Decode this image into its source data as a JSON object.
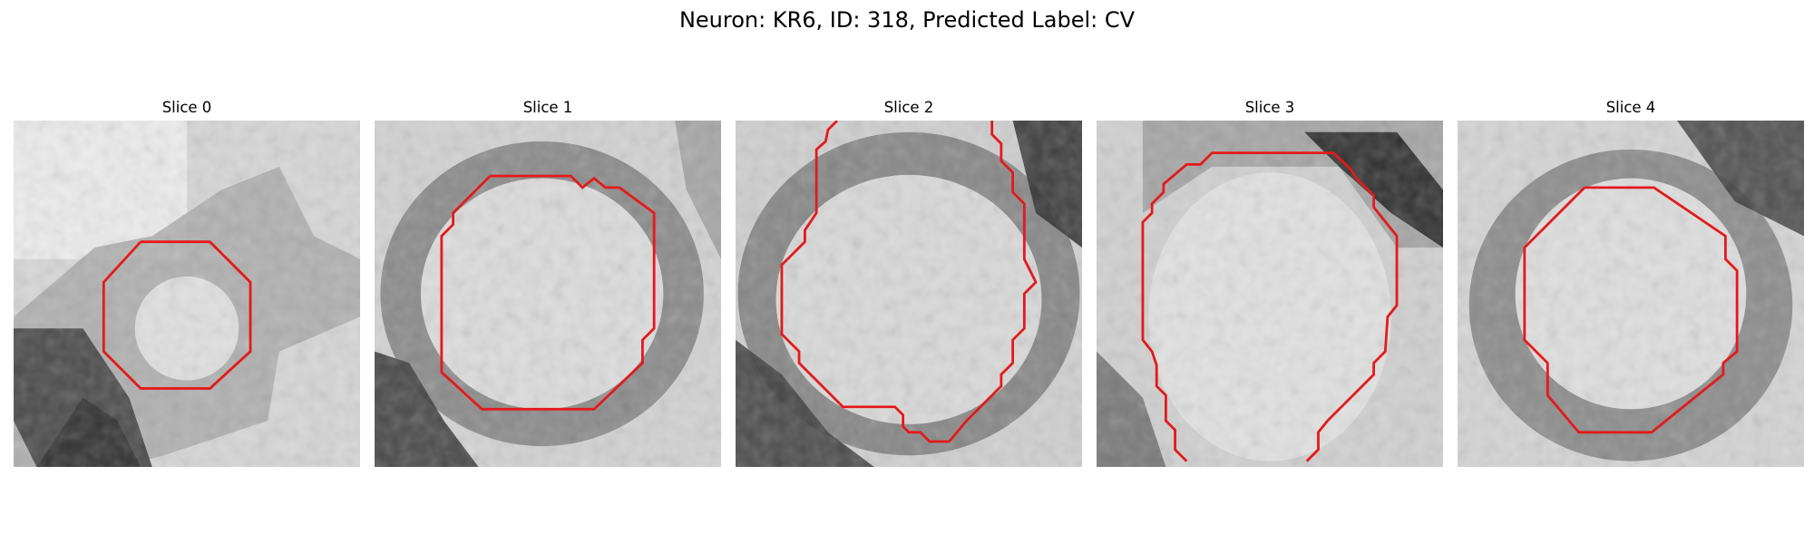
{
  "figure": {
    "title": "Neuron: KR6, ID: 318, Predicted Label: CV"
  },
  "slices": [
    {
      "title": "Slice 0"
    },
    {
      "title": "Slice 1"
    },
    {
      "title": "Slice 2"
    },
    {
      "title": "Slice 3"
    },
    {
      "title": "Slice 4"
    }
  ],
  "contour_color": "#e31a1c"
}
